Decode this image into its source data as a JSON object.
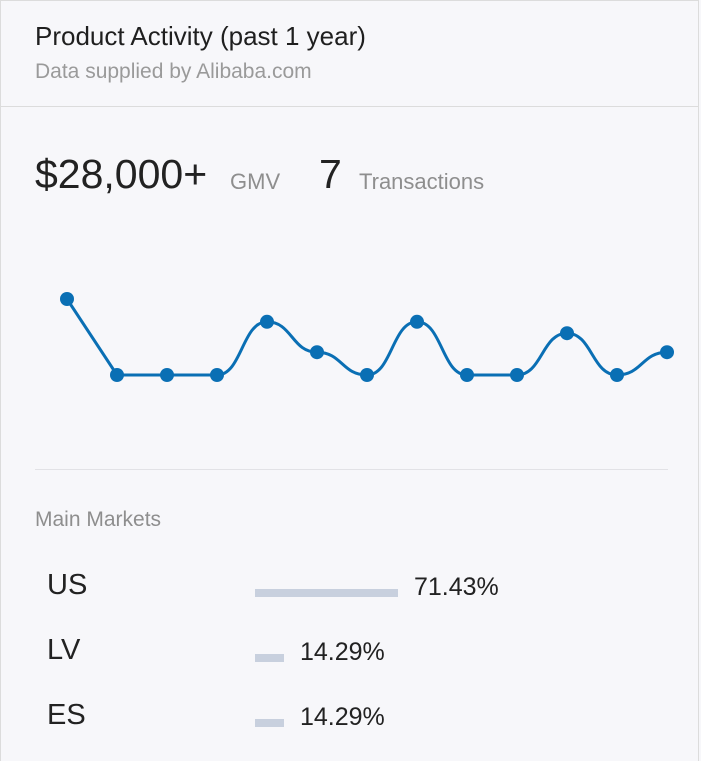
{
  "header": {
    "title": "Product Activity (past 1 year)",
    "subtitle": "Data supplied by Alibaba.com"
  },
  "metrics": {
    "gmv_value": "$28,000+",
    "gmv_label": "GMV",
    "transactions_value": "7",
    "transactions_label": "Transactions"
  },
  "chart_data": {
    "type": "line",
    "series": [
      {
        "values": [
          2,
          0,
          0,
          0,
          1.4,
          0.6,
          0,
          1.4,
          0,
          0,
          1.1,
          0,
          0.6
        ]
      }
    ],
    "line_color": "#0a6fb4",
    "grid": false
  },
  "markets": {
    "label": "Main Markets",
    "rows": [
      {
        "country": "US",
        "percent_text": "71.43%",
        "share": 0.7143
      },
      {
        "country": "LV",
        "percent_text": "14.29%",
        "share": 0.1429
      },
      {
        "country": "ES",
        "percent_text": "14.29%",
        "share": 0.1429
      }
    ],
    "bar_color": "#c8d0de"
  }
}
